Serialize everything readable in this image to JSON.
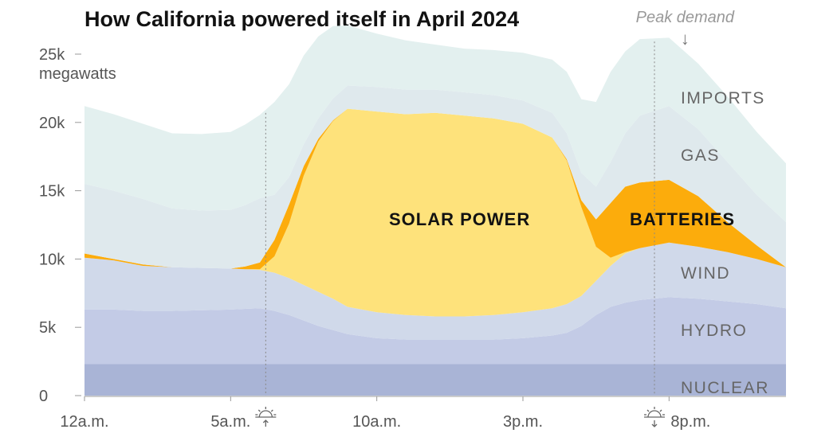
{
  "chart_data": {
    "type": "area",
    "title": "How California powered itself in April 2024",
    "ylabel_unit": "megawatts",
    "y_ticks": [
      {
        "value": 25000,
        "label": "25k"
      },
      {
        "value": 20000,
        "label": "20k"
      },
      {
        "value": 15000,
        "label": "15k"
      },
      {
        "value": 10000,
        "label": "10k"
      },
      {
        "value": 5000,
        "label": "5k"
      },
      {
        "value": 0,
        "label": "0"
      }
    ],
    "x_ticks": [
      {
        "value": 0,
        "label": "12a.m."
      },
      {
        "value": 5,
        "label": "5a.m."
      },
      {
        "value": 10,
        "label": "10a.m."
      },
      {
        "value": 15,
        "label": "3p.m."
      },
      {
        "value": 20,
        "label": "8p.m."
      }
    ],
    "xlim": [
      0,
      24
    ],
    "ylim": [
      0,
      25000
    ],
    "x": [
      0,
      1,
      2,
      3,
      4,
      5,
      5.5,
      6,
      6.5,
      7,
      7.5,
      8,
      8.5,
      9,
      10,
      11,
      12,
      13,
      14,
      15,
      16,
      16.5,
      17,
      17.5,
      18,
      18.5,
      19,
      20,
      21,
      22,
      23,
      24
    ],
    "series": [
      {
        "name": "NUCLEAR",
        "color": "#a9b4d6",
        "values": [
          2300,
          2300,
          2300,
          2300,
          2300,
          2300,
          2300,
          2300,
          2300,
          2300,
          2300,
          2300,
          2300,
          2300,
          2300,
          2300,
          2300,
          2300,
          2300,
          2300,
          2300,
          2300,
          2300,
          2300,
          2300,
          2300,
          2300,
          2300,
          2300,
          2300,
          2300,
          2300
        ]
      },
      {
        "name": "HYDRO",
        "color": "#c3cbe6",
        "values": [
          4000,
          4000,
          3900,
          3900,
          3950,
          4000,
          4050,
          4100,
          3900,
          3600,
          3200,
          2800,
          2500,
          2200,
          1900,
          1800,
          1800,
          1800,
          1800,
          1900,
          2100,
          2300,
          2800,
          3600,
          4200,
          4500,
          4700,
          4900,
          4800,
          4600,
          4400,
          4100
        ]
      },
      {
        "name": "WIND",
        "color": "#d0d9ea",
        "values": [
          3800,
          3600,
          3300,
          3200,
          3100,
          3000,
          2900,
          2800,
          2800,
          2700,
          2600,
          2500,
          2300,
          2000,
          1900,
          1800,
          1700,
          1700,
          1800,
          1900,
          2000,
          2100,
          2200,
          2500,
          3000,
          3600,
          3800,
          4000,
          3800,
          3600,
          3300,
          3000
        ]
      },
      {
        "name": "SOLAR POWER",
        "color": "#fee27b",
        "values": [
          0,
          0,
          0,
          0,
          0,
          0,
          0,
          50,
          1200,
          4000,
          8000,
          11000,
          13000,
          14500,
          14700,
          14700,
          14900,
          14700,
          14400,
          13800,
          12500,
          10500,
          6500,
          2500,
          600,
          100,
          0,
          0,
          0,
          0,
          0,
          0
        ]
      },
      {
        "name": "BATTERIES",
        "color": "#fcac0c",
        "values": [
          300,
          100,
          100,
          0,
          0,
          0,
          200,
          500,
          1200,
          1400,
          700,
          200,
          50,
          0,
          0,
          0,
          0,
          0,
          0,
          0,
          0,
          100,
          500,
          2000,
          4000,
          4800,
          4800,
          4600,
          3700,
          2200,
          1000,
          0
        ]
      },
      {
        "name": "GAS",
        "color": "#dfe9ed",
        "values": [
          5100,
          5000,
          4800,
          4300,
          4200,
          4300,
          4500,
          4700,
          3300,
          2000,
          1600,
          1500,
          1600,
          1700,
          1800,
          1800,
          1700,
          1700,
          1700,
          1700,
          1800,
          1900,
          2000,
          2400,
          3000,
          3900,
          4900,
          5400,
          4900,
          4400,
          3700,
          3300
        ]
      },
      {
        "name": "IMPORTS",
        "color": "#e3f0ef",
        "values": [
          5700,
          5600,
          5500,
          5500,
          5600,
          5700,
          5900,
          6100,
          6800,
          6800,
          6500,
          6000,
          5300,
          4400,
          3900,
          3600,
          3300,
          3200,
          3300,
          3500,
          3900,
          4500,
          5400,
          6200,
          6600,
          6000,
          5600,
          5000,
          4800,
          4800,
          4600,
          4300
        ]
      }
    ],
    "sun_markers": [
      {
        "x": 6.2,
        "type": "sunrise"
      },
      {
        "x": 19.5,
        "type": "sunset"
      }
    ],
    "annotation": {
      "text": "Peak demand",
      "x": 20,
      "arrow": "↓"
    },
    "grid": false,
    "legend": "inline labels"
  }
}
